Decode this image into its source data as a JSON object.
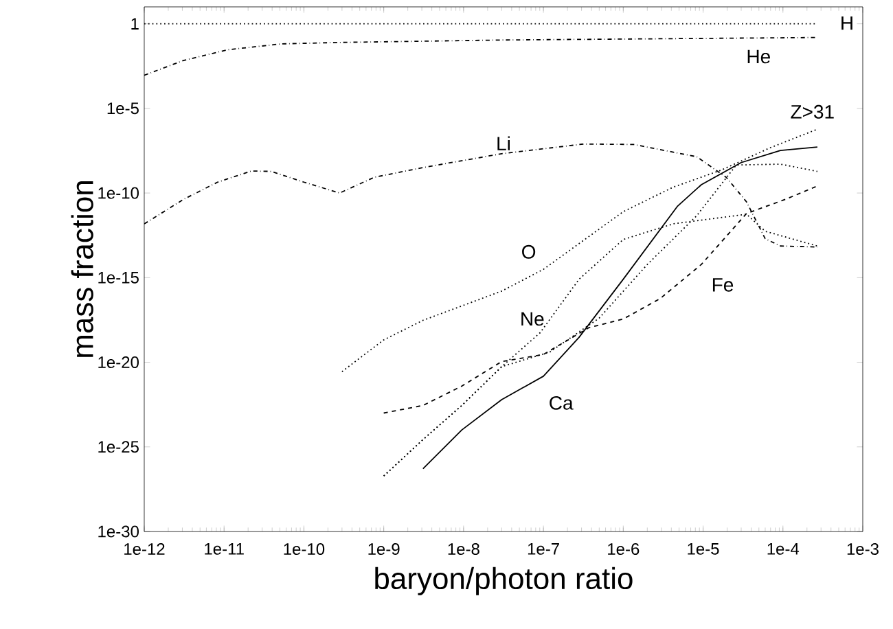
{
  "chart_data": {
    "type": "line",
    "xlabel": "baryon/photon ratio",
    "ylabel": "mass fraction",
    "log": "xy",
    "xlim": [
      1e-12,
      0.001
    ],
    "ylim": [
      1e-30,
      10
    ],
    "xticks": [
      {
        "value": 1e-12,
        "label": "1e-12"
      },
      {
        "value": 1e-11,
        "label": "1e-11"
      },
      {
        "value": 1e-10,
        "label": "1e-10"
      },
      {
        "value": 1e-09,
        "label": "1e-9"
      },
      {
        "value": 1e-08,
        "label": "1e-8"
      },
      {
        "value": 1e-07,
        "label": "1e-7"
      },
      {
        "value": 1e-06,
        "label": "1e-6"
      },
      {
        "value": 1e-05,
        "label": "1e-5"
      },
      {
        "value": 0.0001,
        "label": "1e-4"
      },
      {
        "value": 0.001,
        "label": "1e-3"
      }
    ],
    "yticks": [
      {
        "value": 1e-30,
        "label": "1e-30"
      },
      {
        "value": 1e-25,
        "label": "1e-25"
      },
      {
        "value": 1e-20,
        "label": "1e-20"
      },
      {
        "value": 1e-15,
        "label": "1e-15"
      },
      {
        "value": 1e-10,
        "label": "1e-10"
      },
      {
        "value": 1e-05,
        "label": "1e-5"
      },
      1
    ],
    "marker": "none",
    "grid": false,
    "series": [
      {
        "color": "#000000",
        "line_style": "dotted",
        "x": [
          1e-12,
          0.00027
        ],
        "values": [
          1,
          1
        ]
      },
      {
        "color": "#000000",
        "line_style": "dashdot",
        "x": [
          1e-12,
          3.1e-12,
          1.1e-11,
          5.2e-11,
          2.8e-10,
          3e-08,
          0.00027
        ],
        "values": [
          0.00091,
          0.0068,
          0.029,
          0.065,
          0.079,
          0.11,
          0.155
        ]
      },
      {
        "color": "#000000",
        "line_style": "dashdot",
        "x": [
          1e-12,
          3.1e-12,
          8.3e-12,
          2.2e-11,
          3.9e-11,
          1e-10,
          2.8e-10,
          7.6e-10,
          3.1e-09,
          3e-08,
          3.2e-07,
          1.35e-06,
          8.3e-06,
          1.95e-05,
          3.5e-05,
          6e-05,
          9.3e-05,
          0.00027
        ],
        "values": [
          1.5e-12,
          4.2e-11,
          4.4e-10,
          2e-09,
          1.9e-09,
          4.4e-10,
          1e-10,
          8.5e-10,
          3.2e-09,
          2.1e-08,
          7.9e-08,
          7.4e-08,
          1.4e-08,
          8.5e-10,
          3e-11,
          2e-13,
          7.4e-14,
          6.5e-14
        ]
      },
      {
        "color": "#000000",
        "line_style": "dotted",
        "x": [
          3e-10,
          1e-09,
          3.1e-09,
          3e-08,
          1e-07,
          1e-06,
          4.2e-06,
          1.7e-05,
          6.9e-05,
          0.00027
        ],
        "values": [
          2.8e-21,
          2.1e-19,
          3e-18,
          1.6e-16,
          3.1e-15,
          7.9e-12,
          2.2e-10,
          2.3e-09,
          4.7e-08,
          5.9e-07
        ]
      },
      {
        "color": "#000000",
        "line_style": "dotted",
        "x": [
          1e-09,
          3.1e-09,
          9.5e-09,
          3e-08,
          9.1e-08,
          2.8e-07,
          1e-06,
          4.2e-06,
          3.5e-05,
          6e-05,
          0.00027
        ],
        "values": [
          1.9e-27,
          2.7e-25,
          2.8e-23,
          5.5e-21,
          5.6e-19,
          8.1e-16,
          1.8e-13,
          1.5e-12,
          5.6e-12,
          5.5e-13,
          7.4e-14
        ]
      },
      {
        "color": "#000000",
        "line_style": "dotted",
        "x": [
          1e-09,
          3.1e-09,
          9.5e-09,
          3e-08,
          1.2e-07,
          5e-07,
          2e-06,
          8.3e-06,
          2.6e-05,
          9.3e-05,
          0.00027
        ],
        "values": [
          1.9e-27,
          2.7e-25,
          2.8e-23,
          5.5e-21,
          4e-20,
          4.1e-18,
          6e-15,
          4.5e-12,
          4.5e-09,
          5.1e-09,
          1.9e-09
        ]
      },
      {
        "color": "#000000",
        "line_style": "dashed",
        "x": [
          1e-09,
          3.1e-09,
          9.5e-09,
          3e-08,
          1e-07,
          3.7e-07,
          1e-06,
          2.9e-06,
          9.5e-06,
          3.5e-05,
          0.000107,
          0.00027
        ],
        "values": [
          1e-23,
          2.8e-23,
          3.9e-22,
          1.1e-20,
          2.9e-20,
          1.1e-18,
          3.6e-18,
          5.8e-17,
          6e-15,
          6.2e-12,
          4.2e-11,
          2.6e-10
        ]
      },
      {
        "color": "#000000",
        "line_style": "solid",
        "x": [
          3.1e-09,
          9.5e-09,
          3e-08,
          1e-07,
          2.8e-07,
          1e-06,
          4.8e-06,
          9.5e-06,
          3e-05,
          9.3e-05,
          0.00027
        ],
        "values": [
          5.1e-27,
          1e-24,
          6.2e-23,
          1.5e-21,
          3e-19,
          8.1e-16,
          1.7e-11,
          3.1e-10,
          6.3e-09,
          3.3e-08,
          5.2e-08
        ]
      }
    ],
    "annotations": [
      "H",
      "He",
      "Z>31",
      "Li",
      "O",
      "Ne",
      "Ca",
      "Fe"
    ]
  }
}
